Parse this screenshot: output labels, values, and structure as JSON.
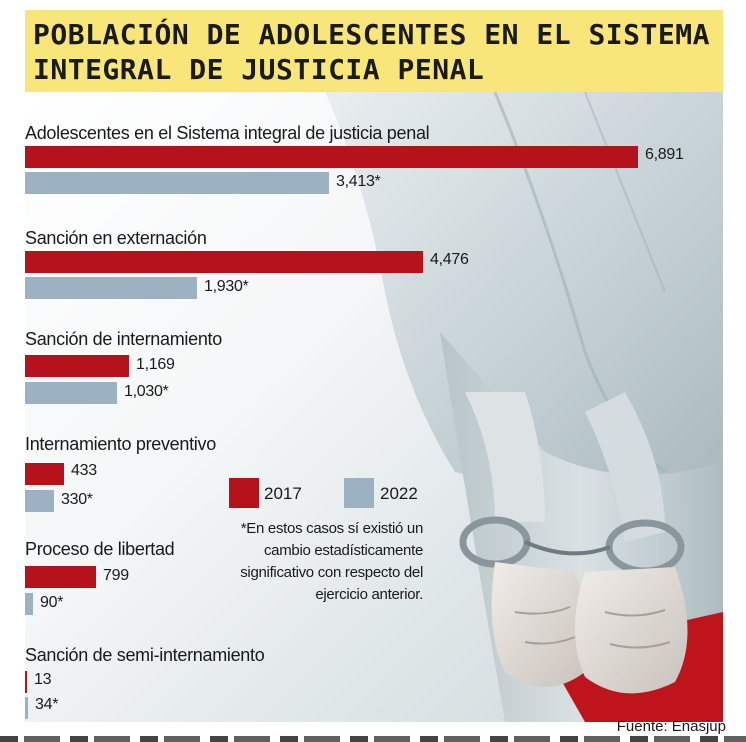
{
  "title": {
    "line1": "POBLACIÓN DE ADOLESCENTES EN EL SISTEMA",
    "line2": "INTEGRAL DE JUSTICIA PENAL"
  },
  "chart_data": {
    "type": "bar",
    "orientation": "horizontal",
    "series": [
      {
        "name": "2017",
        "color": "#b5121b"
      },
      {
        "name": "2022",
        "color": "#9cb2c2"
      }
    ],
    "categories": [
      {
        "label": "Adolescentes en el Sistema integral de justicia penal",
        "v2017": 6891,
        "v2022": 3413,
        "t2017": "6,891",
        "t2022": "3,413*"
      },
      {
        "label": "Sanción en externación",
        "v2017": 4476,
        "v2022": 1930,
        "t2017": "4,476",
        "t2022": "1,930*"
      },
      {
        "label": "Sanción de internamiento",
        "v2017": 1169,
        "v2022": 1030,
        "t2017": "1,169",
        "t2022": "1,030*"
      },
      {
        "label": "Internamiento preventivo",
        "v2017": 433,
        "v2022": 330,
        "t2017": "433",
        "t2022": "330*"
      },
      {
        "label": "Proceso de libertad",
        "v2017": 799,
        "v2022": 90,
        "t2017": "799",
        "t2022": "90*"
      },
      {
        "label": "Sanción de semi-internamiento",
        "v2017": 13,
        "v2022": 34,
        "t2017": "13",
        "t2022": "34*"
      }
    ]
  },
  "legend": {
    "s2017": "2017",
    "s2022": "2022"
  },
  "note": "*En estos casos sí existió un cambio estadísticamente significativo con respecto del ejercicio anterior.",
  "source": "Fuente: Enasjup",
  "colors": {
    "banner": "#f8e67a",
    "red": "#b5121b",
    "blue": "#9cb2c2"
  }
}
